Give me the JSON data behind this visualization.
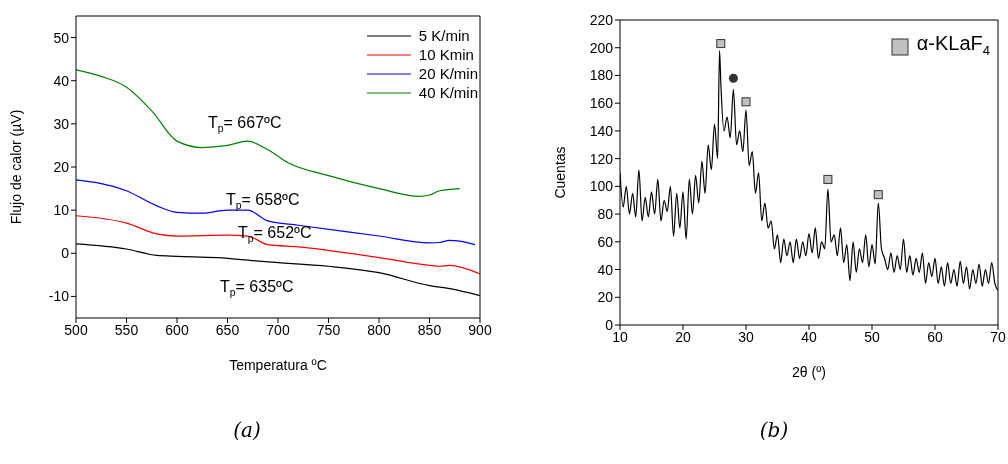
{
  "chart_data": [
    {
      "type": "line",
      "xlabel": "Temperatura ºC",
      "ylabel": "Flujo de calor (µV)",
      "xlim": [
        500,
        900
      ],
      "ylim": [
        -15,
        55
      ],
      "xticks": [
        500,
        550,
        600,
        650,
        700,
        750,
        800,
        850,
        900
      ],
      "yticks": [
        -10,
        0,
        10,
        20,
        30,
        40,
        50
      ],
      "grid": false,
      "legend": "top right",
      "marker": "none",
      "line_style": "solid",
      "series": [
        {
          "name": "5 K/min",
          "color": "#000000",
          "x": [
            500,
            550,
            580,
            600,
            640,
            690,
            750,
            800,
            850,
            870,
            900
          ],
          "values": [
            2.2,
            1,
            -0.5,
            -0.7,
            -1,
            -2,
            -3,
            -4.5,
            -7.5,
            -8.2,
            -9.8
          ]
        },
        {
          "name": "10 Kmin",
          "color": "#ff0000",
          "x": [
            500,
            550,
            580,
            600,
            650,
            670,
            690,
            720,
            800,
            850,
            860,
            870,
            900
          ],
          "values": [
            8.7,
            7,
            4.5,
            4,
            4.2,
            4,
            2,
            1.5,
            -1,
            -2.8,
            -3,
            -2.8,
            -4.8
          ]
        },
        {
          "name": "20 K/min",
          "color": "#0000ff",
          "x": [
            500,
            550,
            580,
            600,
            625,
            650,
            670,
            690,
            720,
            800,
            850,
            860,
            870,
            880,
            895
          ],
          "values": [
            17,
            14.5,
            11,
            9.5,
            9.3,
            10,
            10,
            7.5,
            6.5,
            4,
            2.4,
            2.5,
            3,
            2.8,
            2
          ]
        },
        {
          "name": "40 K/min",
          "color": "#008000",
          "x": [
            500,
            525,
            550,
            575,
            600,
            625,
            650,
            670,
            690,
            710,
            750,
            800,
            840,
            850,
            860,
            880
          ],
          "values": [
            42.5,
            41,
            38.5,
            33,
            26,
            24.5,
            25,
            26,
            24,
            21,
            18,
            15,
            13.2,
            13.5,
            14.5,
            15
          ]
        }
      ],
      "annotations": [
        "T$_{p}$= 667ºC",
        "T$_{p}$= 658ºC",
        "T$_{p}$= 652ºC",
        "T$_{p}$= 635ºC",
        "(a)"
      ]
    },
    {
      "type": "line",
      "xlabel": "2θ (º)",
      "ylabel": "Cuentas",
      "xlim": [
        10,
        70
      ],
      "ylim": [
        0,
        220
      ],
      "xticks": [
        10,
        20,
        30,
        40,
        50,
        60,
        70
      ],
      "yticks": [
        0,
        20,
        40,
        60,
        80,
        100,
        120,
        140,
        160,
        180,
        200,
        220
      ],
      "grid": false,
      "legend": "top right",
      "line_style": "solid",
      "series": [
        {
          "color": "#000000",
          "x": [
            10,
            10.5,
            11,
            11.5,
            12,
            12.5,
            13,
            13.5,
            14,
            14.5,
            15,
            15.5,
            16,
            16.5,
            17,
            17.5,
            18,
            18.5,
            19,
            19.5,
            20,
            20.5,
            21,
            21.5,
            22,
            22.5,
            23,
            23.5,
            24,
            24.5,
            25,
            25.5,
            25.8,
            26,
            26.5,
            27,
            27.5,
            28,
            28.5,
            29,
            29.5,
            30,
            30.5,
            31,
            31.5,
            32,
            32.5,
            33,
            33.5,
            34,
            34.5,
            35,
            35.5,
            36,
            36.5,
            37,
            37.5,
            38,
            38.5,
            39,
            39.5,
            40,
            40.5,
            41,
            41.5,
            42,
            42.5,
            43,
            43.5,
            44,
            44.5,
            45,
            45.5,
            46,
            46.5,
            47,
            47.5,
            48,
            48.5,
            49,
            49.5,
            50,
            50.5,
            51,
            51.5,
            52,
            52.5,
            53,
            53.5,
            54,
            54.5,
            55,
            55.5,
            56,
            56.5,
            57,
            57.5,
            58,
            58.5,
            59,
            59.5,
            60,
            60.5,
            61,
            61.5,
            62,
            62.5,
            63,
            63.5,
            64,
            64.5,
            65,
            65.5,
            66,
            66.5,
            67,
            67.5,
            68,
            68.5,
            69,
            69.5,
            70
          ],
          "values": [
            110,
            85,
            100,
            80,
            95,
            78,
            112,
            75,
            92,
            78,
            96,
            80,
            105,
            75,
            90,
            82,
            100,
            64,
            95,
            70,
            96,
            62,
            105,
            80,
            108,
            88,
            118,
            95,
            130,
            112,
            145,
            120,
            198,
            175,
            140,
            150,
            135,
            170,
            130,
            140,
            125,
            155,
            115,
            125,
            95,
            110,
            75,
            88,
            70,
            75,
            55,
            65,
            45,
            62,
            50,
            60,
            45,
            62,
            48,
            60,
            50,
            66,
            52,
            70,
            48,
            60,
            55,
            98,
            60,
            65,
            50,
            70,
            45,
            58,
            32,
            60,
            38,
            55,
            45,
            65,
            42,
            58,
            44,
            88,
            55,
            48,
            40,
            52,
            38,
            50,
            40,
            62,
            38,
            50,
            36,
            48,
            38,
            52,
            30,
            45,
            35,
            48,
            30,
            42,
            28,
            45,
            30,
            40,
            28,
            46,
            30,
            42,
            26,
            40,
            30,
            44,
            28,
            40,
            30,
            45,
            30,
            25
          ]
        },
        {
          "type": "scatter",
          "name": "α-KLaF$_{4}$",
          "color": "#c0c0c0",
          "marker": "square",
          "x": [
            26,
            30,
            43,
            51
          ],
          "values": [
            203,
            161,
            105,
            94
          ]
        },
        {
          "type": "scatter",
          "color": "#333333",
          "marker": "circle",
          "x": [
            28
          ],
          "values": [
            178
          ]
        }
      ],
      "annotations": [
        "(b)"
      ]
    }
  ]
}
